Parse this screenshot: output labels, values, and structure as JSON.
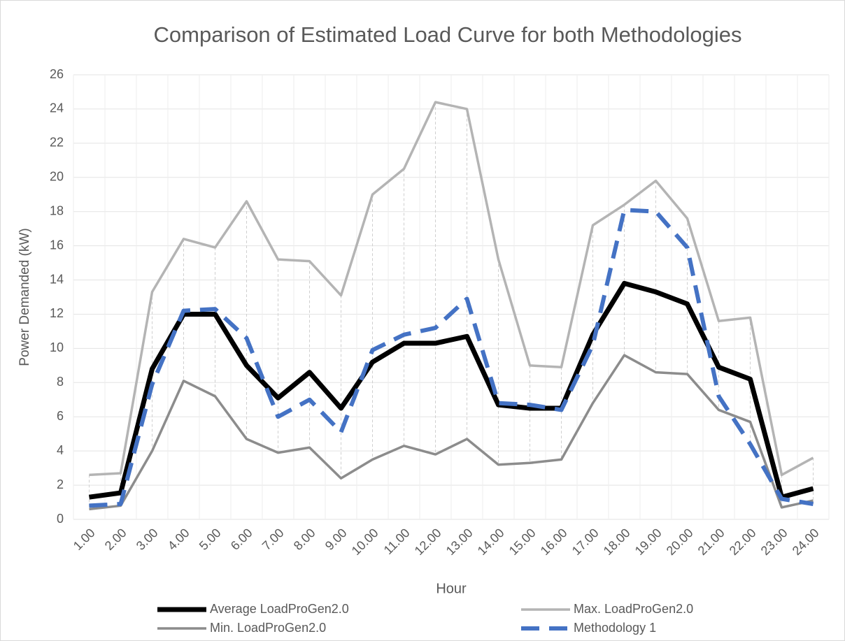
{
  "chart_data": {
    "type": "line",
    "title": "Comparison of Estimated Load Curve for both Methodologies",
    "x_label": "Hour",
    "y_label": "Power Demanded (kW)",
    "categories": [
      "1.00",
      "2.00",
      "3.00",
      "4.00",
      "5.00",
      "6.00",
      "7.00",
      "8.00",
      "9.00",
      "10.00",
      "11.00",
      "12.00",
      "13.00",
      "14.00",
      "15.00",
      "16.00",
      "17.00",
      "18.00",
      "19.00",
      "20.00",
      "21.00",
      "22.00",
      "23.00",
      "24.00"
    ],
    "series": [
      {
        "name": "Average LoadProGen2.0",
        "color": "#000000",
        "dash": false,
        "values": [
          1.3,
          1.55,
          8.8,
          12.0,
          12.0,
          9.0,
          7.1,
          8.6,
          6.5,
          9.2,
          10.3,
          10.3,
          10.7,
          6.7,
          6.5,
          6.5,
          10.8,
          13.8,
          13.3,
          12.6,
          8.9,
          8.2,
          1.3,
          1.8
        ]
      },
      {
        "name": "Max. LoadProGen2.0",
        "color": "#b4b4b4",
        "dash": false,
        "values": [
          2.6,
          2.7,
          13.3,
          16.4,
          15.9,
          18.6,
          15.2,
          15.1,
          13.1,
          19.0,
          20.5,
          24.4,
          24.0,
          15.2,
          9.0,
          8.9,
          17.2,
          18.4,
          19.8,
          17.6,
          11.6,
          11.8,
          2.6,
          3.6
        ]
      },
      {
        "name": "Min. LoadProGen2.0",
        "color": "#8c8c8c",
        "dash": false,
        "values": [
          0.6,
          0.8,
          4.0,
          8.1,
          7.2,
          4.7,
          3.9,
          4.2,
          2.4,
          3.5,
          4.3,
          3.8,
          4.7,
          3.2,
          3.3,
          3.5,
          6.8,
          9.6,
          8.6,
          8.5,
          6.4,
          5.7,
          0.7,
          1.1
        ]
      },
      {
        "name": "Methodology 1",
        "color": "#4472c4",
        "dash": true,
        "values": [
          0.8,
          0.9,
          7.9,
          12.2,
          12.3,
          10.6,
          6.0,
          7.0,
          5.1,
          9.9,
          10.8,
          11.2,
          12.9,
          6.8,
          6.7,
          6.4,
          10.2,
          18.1,
          18.0,
          15.9,
          7.2,
          4.4,
          1.2,
          0.9
        ]
      }
    ],
    "ylim": [
      0,
      26
    ],
    "yticks": [
      0,
      2,
      4,
      6,
      8,
      10,
      12,
      14,
      16,
      18,
      20,
      22,
      24,
      26
    ],
    "grid": true,
    "drop_lines": true,
    "legend": "bottom"
  }
}
